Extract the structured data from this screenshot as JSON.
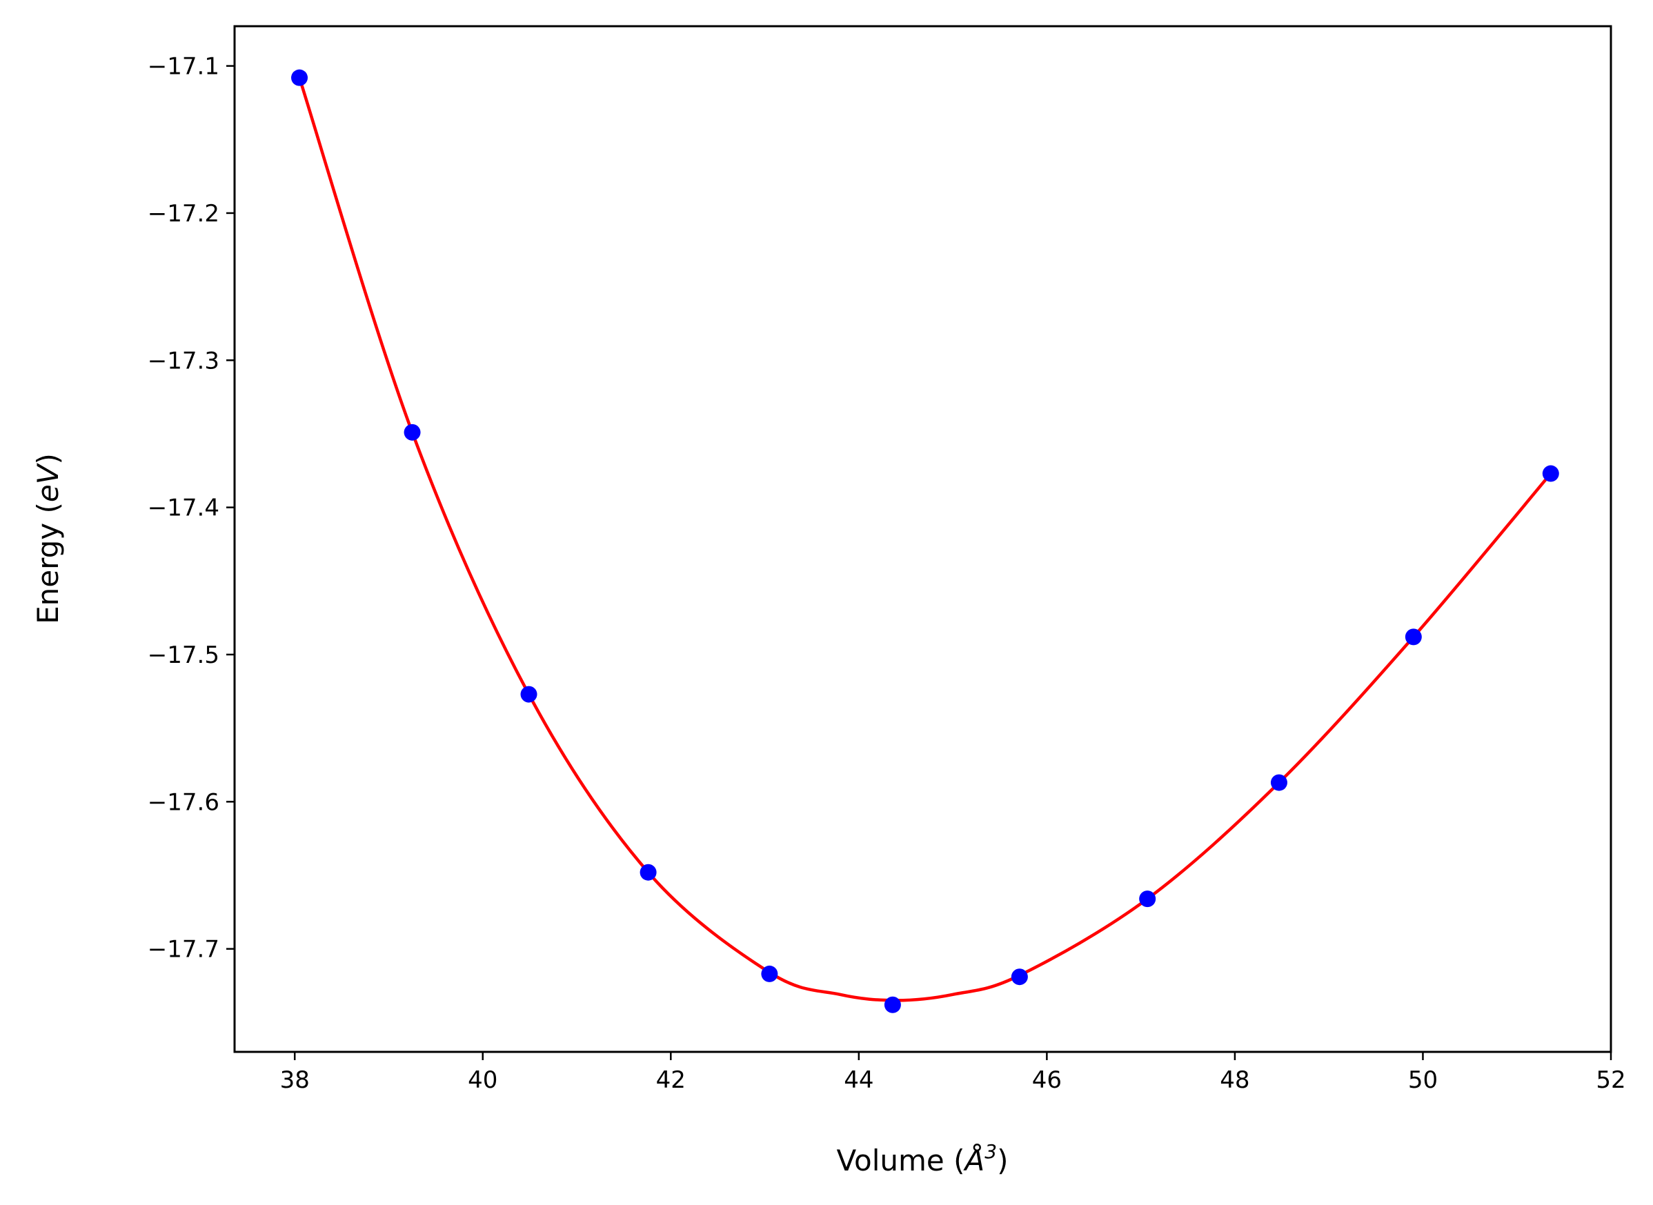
{
  "chart_data": {
    "type": "line",
    "title": "",
    "xlabel": "Volume (Å³)",
    "xlabel_parts": {
      "pre": "Volume (",
      "sym": "Å",
      "sup": "3",
      "post": ")"
    },
    "ylabel": "Energy (eV)",
    "ylabel_parts": {
      "pre": "Energy (",
      "unit": "eV",
      "post": ")"
    },
    "xlim": [
      37.36,
      52.0
    ],
    "ylim": [
      -17.77,
      -17.073
    ],
    "xticks": [
      38,
      40,
      42,
      44,
      46,
      48,
      50,
      52
    ],
    "xtick_labels": [
      "38",
      "40",
      "42",
      "44",
      "46",
      "48",
      "50",
      "52"
    ],
    "yticks": [
      -17.1,
      -17.2,
      -17.3,
      -17.4,
      -17.5,
      -17.6,
      -17.7
    ],
    "ytick_labels": [
      "−17.1",
      "−17.2",
      "−17.3",
      "−17.4",
      "−17.5",
      "−17.6",
      "−17.7"
    ],
    "grid": false,
    "series": [
      {
        "name": "data",
        "kind": "scatter",
        "color": "#0000ff",
        "x": [
          38.05,
          39.25,
          40.49,
          41.76,
          43.05,
          44.36,
          45.71,
          47.07,
          48.47,
          49.9,
          51.36
        ],
        "y": [
          -17.108,
          -17.349,
          -17.527,
          -17.648,
          -17.717,
          -17.738,
          -17.719,
          -17.666,
          -17.587,
          -17.488,
          -17.377
        ]
      },
      {
        "name": "fit",
        "kind": "line",
        "color": "#ff0000",
        "x": [
          38.05,
          39.25,
          40.49,
          41.76,
          43.05,
          43.8,
          44.4,
          45.0,
          45.71,
          47.07,
          48.47,
          49.9,
          51.36
        ],
        "y": [
          -17.108,
          -17.349,
          -17.527,
          -17.648,
          -17.716,
          -17.731,
          -17.735,
          -17.731,
          -17.718,
          -17.666,
          -17.587,
          -17.488,
          -17.377
        ]
      }
    ]
  }
}
